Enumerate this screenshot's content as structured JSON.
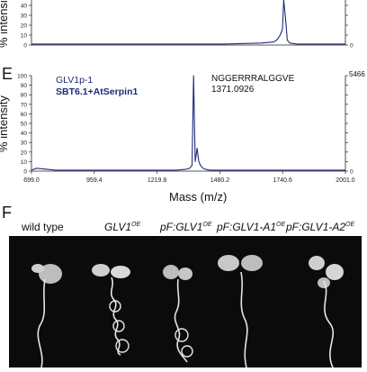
{
  "panelE": {
    "letter": "E",
    "legend_line1": "GLV1p-1",
    "legend_line2": "SBT6.1+AtSerpin1",
    "peak_label": "NGGERRRALGGVE",
    "peak_mz": "1371.0926",
    "right_axis_max": "5466",
    "ylabel": "% intensity",
    "xlabel": "Mass (m/z)"
  },
  "panelF": {
    "letter": "F",
    "labels": [
      {
        "text": "wild type",
        "sup": ""
      },
      {
        "text": "GLV1",
        "sup": "OE"
      },
      {
        "text": "pF:GLV1",
        "sup": "OE"
      },
      {
        "text": "pF:GLV1-A1",
        "sup": "OE"
      },
      {
        "text": "pF:GLV1-A2",
        "sup": "OE"
      }
    ]
  },
  "colors": {
    "spectrum": "#1f2a7a",
    "photo_bg": "#0b0b0b",
    "seedling": "#e6e6e6"
  },
  "chart_data": [
    {
      "type": "line",
      "panel": "top (partial)",
      "ylabel": "% intensity",
      "yticks": [
        0,
        10,
        20,
        30,
        40
      ],
      "ylim": [
        0,
        100
      ],
      "xlim": [
        699.0,
        2001.0
      ],
      "series": [
        {
          "x": [
            699,
            760,
            900,
            1100,
            1300,
            1500,
            1650,
            1700,
            1710,
            1720,
            1730,
            1740,
            1745,
            1752,
            1760,
            1770,
            1800,
            1900,
            2001
          ],
          "values": [
            1,
            1,
            1,
            1,
            1,
            1,
            2,
            3,
            4,
            6,
            10,
            16,
            100,
            28,
            5,
            2,
            1,
            1,
            1
          ]
        }
      ]
    },
    {
      "type": "line",
      "panel": "E",
      "title": "GLV1p-1 / SBT6.1+AtSerpin1",
      "xlabel": "Mass (m/z)",
      "ylabel": "% intensity",
      "xticks": [
        "699.0",
        "959.4",
        "1219.8",
        "1480.2",
        "1740.6",
        "2001.0"
      ],
      "yticks": [
        "0",
        "10",
        "20",
        "30",
        "40",
        "50",
        "60",
        "70",
        "80",
        "90",
        "100"
      ],
      "xlim": [
        699.0,
        2001.0
      ],
      "ylim": [
        0,
        100
      ],
      "right_axis_max": 5466,
      "peak_annotation": {
        "label": "NGGERRRALGGVE",
        "mz": 1371.0926
      },
      "series": [
        {
          "x": [
            699,
            720,
            800,
            900,
            1000,
            1100,
            1200,
            1300,
            1340,
            1355,
            1365,
            1371.1,
            1378,
            1386,
            1393,
            1400,
            1410,
            1420,
            1440,
            1500,
            1600,
            1700,
            1800,
            2001
          ],
          "values": [
            1,
            3,
            1,
            1,
            1,
            1,
            1,
            1,
            2,
            3,
            6,
            100,
            10,
            24,
            10,
            6,
            3,
            2,
            1,
            1,
            1,
            1,
            1,
            1
          ]
        }
      ]
    }
  ]
}
